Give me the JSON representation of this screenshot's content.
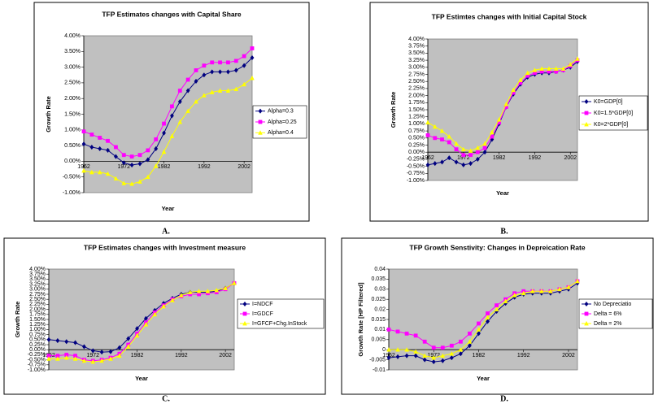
{
  "chart_data": [
    {
      "type": "line",
      "title": "TFP Estimates changes with Capital Share",
      "caption": "A.",
      "xlabel": "Year",
      "ylabel": "Growth Rate",
      "x": [
        1962,
        1964,
        1966,
        1968,
        1970,
        1972,
        1974,
        1976,
        1978,
        1980,
        1982,
        1984,
        1986,
        1988,
        1990,
        1992,
        1994,
        1996,
        1998,
        2000,
        2002,
        2004
      ],
      "xlim": [
        1962,
        2004
      ],
      "xticks": [
        1962,
        1972,
        1982,
        1992,
        2002
      ],
      "ylim": [
        -1,
        4
      ],
      "yticks": [
        {
          "value": -1,
          "label": "-1.00%"
        },
        {
          "value": -0.5,
          "label": "-0.50%"
        },
        {
          "value": 0,
          "label": "0.00%"
        },
        {
          "value": 0.5,
          "label": "0.50%"
        },
        {
          "value": 1,
          "label": "1.00%"
        },
        {
          "value": 1.5,
          "label": "1.50%"
        },
        {
          "value": 2,
          "label": "2.00%"
        },
        {
          "value": 2.5,
          "label": "2.50%"
        },
        {
          "value": 3,
          "label": "3.00%"
        },
        {
          "value": 3.5,
          "label": "3.50%"
        },
        {
          "value": 4,
          "label": "4.00%"
        }
      ],
      "series": [
        {
          "name": "Alpha=0.3",
          "color": "#000080",
          "marker": "diamond",
          "values": [
            0.55,
            0.45,
            0.4,
            0.35,
            0.15,
            -0.05,
            -0.12,
            -0.08,
            0.05,
            0.4,
            0.9,
            1.45,
            1.9,
            2.25,
            2.55,
            2.75,
            2.85,
            2.85,
            2.85,
            2.9,
            3.05,
            3.3
          ]
        },
        {
          "name": "Alpha=0.25",
          "color": "#ff00ff",
          "marker": "square",
          "values": [
            0.95,
            0.85,
            0.75,
            0.65,
            0.45,
            0.2,
            0.15,
            0.2,
            0.35,
            0.7,
            1.2,
            1.75,
            2.25,
            2.6,
            2.9,
            3.05,
            3.15,
            3.15,
            3.15,
            3.2,
            3.35,
            3.6
          ]
        },
        {
          "name": "Alpha=0.4",
          "color": "#ffff00",
          "marker": "triangle",
          "values": [
            -0.3,
            -0.35,
            -0.35,
            -0.4,
            -0.55,
            -0.7,
            -0.72,
            -0.65,
            -0.5,
            -0.15,
            0.3,
            0.8,
            1.25,
            1.6,
            1.9,
            2.1,
            2.2,
            2.25,
            2.25,
            2.3,
            2.45,
            2.65
          ]
        }
      ]
    },
    {
      "type": "line",
      "title": "TFP Estimtes changes with Initial Capital Stock",
      "caption": "B.",
      "xlabel": "Year",
      "ylabel": "Growth Rate",
      "x": [
        1962,
        1964,
        1966,
        1968,
        1970,
        1972,
        1974,
        1976,
        1978,
        1980,
        1982,
        1984,
        1986,
        1988,
        1990,
        1992,
        1994,
        1996,
        1998,
        2000,
        2002,
        2004
      ],
      "xlim": [
        1962,
        2004
      ],
      "xticks": [
        1962,
        1972,
        1982,
        1992,
        2002
      ],
      "ylim": [
        -1,
        4
      ],
      "yticks": [
        {
          "value": -1,
          "label": "-1.00%"
        },
        {
          "value": -0.75,
          "label": "-0.75%"
        },
        {
          "value": -0.5,
          "label": "-0.50%"
        },
        {
          "value": -0.25,
          "label": "-0.25%"
        },
        {
          "value": 0,
          "label": "0.00%"
        },
        {
          "value": 0.25,
          "label": "0.25%"
        },
        {
          "value": 0.5,
          "label": "0.50%"
        },
        {
          "value": 0.75,
          "label": "0.75%"
        },
        {
          "value": 1,
          "label": "1.00%"
        },
        {
          "value": 1.25,
          "label": "1.25%"
        },
        {
          "value": 1.5,
          "label": "1.50%"
        },
        {
          "value": 1.75,
          "label": "1.75%"
        },
        {
          "value": 2,
          "label": "2.00%"
        },
        {
          "value": 2.25,
          "label": "2.25%"
        },
        {
          "value": 2.5,
          "label": "2.50%"
        },
        {
          "value": 2.75,
          "label": "2.75%"
        },
        {
          "value": 3,
          "label": "3.00%"
        },
        {
          "value": 3.25,
          "label": "3.25%"
        },
        {
          "value": 3.5,
          "label": "3.50%"
        },
        {
          "value": 3.75,
          "label": "3.75%"
        },
        {
          "value": 4,
          "label": "4.00%"
        }
      ],
      "series": [
        {
          "name": "K0=GDP[0]",
          "color": "#000080",
          "marker": "diamond",
          "values": [
            -0.45,
            -0.4,
            -0.35,
            -0.2,
            -0.35,
            -0.45,
            -0.4,
            -0.25,
            0.0,
            0.45,
            1.0,
            1.6,
            2.05,
            2.4,
            2.65,
            2.75,
            2.8,
            2.8,
            2.85,
            2.9,
            3.0,
            3.2
          ]
        },
        {
          "name": "K0=1.5*GDP[0]",
          "color": "#ff00ff",
          "marker": "square",
          "values": [
            0.6,
            0.5,
            0.45,
            0.35,
            0.1,
            -0.1,
            -0.1,
            0.0,
            0.15,
            0.55,
            1.05,
            1.6,
            2.1,
            2.45,
            2.7,
            2.8,
            2.85,
            2.85,
            2.85,
            2.9,
            3.05,
            3.25
          ]
        },
        {
          "name": "K0=2*GDP[0]",
          "color": "#ffff00",
          "marker": "triangle",
          "values": [
            1.05,
            0.9,
            0.75,
            0.55,
            0.3,
            0.1,
            0.05,
            0.15,
            0.3,
            0.7,
            1.15,
            1.7,
            2.2,
            2.55,
            2.8,
            2.9,
            2.95,
            2.95,
            2.95,
            2.95,
            3.1,
            3.3
          ]
        }
      ]
    },
    {
      "type": "line",
      "title": "TFP Estimates changes with Investment measure",
      "caption": "C.",
      "xlabel": "Year",
      "ylabel": "Growth Rate",
      "x": [
        1962,
        1964,
        1966,
        1968,
        1970,
        1972,
        1974,
        1976,
        1978,
        1980,
        1982,
        1984,
        1986,
        1988,
        1990,
        1992,
        1994,
        1996,
        1998,
        2000,
        2002,
        2004
      ],
      "xlim": [
        1962,
        2004
      ],
      "xticks": [
        1962,
        1972,
        1982,
        1992,
        2002
      ],
      "ylim": [
        -1,
        4
      ],
      "yticks": [
        {
          "value": -1,
          "label": "-1.00%"
        },
        {
          "value": -0.75,
          "label": "-0.75%"
        },
        {
          "value": -0.5,
          "label": "-0.50%"
        },
        {
          "value": -0.25,
          "label": "-0.25%"
        },
        {
          "value": 0,
          "label": "0.00%"
        },
        {
          "value": 0.25,
          "label": "0.25%"
        },
        {
          "value": 0.5,
          "label": "0.50%"
        },
        {
          "value": 0.75,
          "label": "0.75%"
        },
        {
          "value": 1,
          "label": "1.00%"
        },
        {
          "value": 1.25,
          "label": "1.25%"
        },
        {
          "value": 1.5,
          "label": "1.50%"
        },
        {
          "value": 1.75,
          "label": "1.75%"
        },
        {
          "value": 2,
          "label": "2.00%"
        },
        {
          "value": 2.25,
          "label": "2.25%"
        },
        {
          "value": 2.5,
          "label": "2.50%"
        },
        {
          "value": 2.75,
          "label": "2.75%"
        },
        {
          "value": 3,
          "label": "3.00%"
        },
        {
          "value": 3.25,
          "label": "3.25%"
        },
        {
          "value": 3.5,
          "label": "3.50%"
        },
        {
          "value": 3.75,
          "label": "3.75%"
        },
        {
          "value": 4,
          "label": "4.00%"
        }
      ],
      "series": [
        {
          "name": "I=NDCF",
          "color": "#000080",
          "marker": "diamond",
          "values": [
            0.5,
            0.45,
            0.4,
            0.35,
            0.15,
            -0.05,
            -0.12,
            -0.1,
            0.1,
            0.55,
            1.05,
            1.55,
            1.95,
            2.3,
            2.55,
            2.75,
            2.85,
            2.85,
            2.85,
            2.9,
            3.05,
            3.3
          ]
        },
        {
          "name": "I=GDCF",
          "color": "#ff00ff",
          "marker": "square",
          "values": [
            -0.3,
            -0.3,
            -0.25,
            -0.3,
            -0.5,
            -0.55,
            -0.5,
            -0.4,
            -0.2,
            0.25,
            0.8,
            1.35,
            1.85,
            2.2,
            2.5,
            2.65,
            2.75,
            2.75,
            2.8,
            2.85,
            3.0,
            3.3
          ]
        },
        {
          "name": "I=GFCF+Chg.InStock",
          "color": "#ffff00",
          "marker": "triangle",
          "values": [
            -0.45,
            -0.45,
            -0.4,
            -0.45,
            -0.55,
            -0.6,
            -0.55,
            -0.45,
            -0.3,
            0.15,
            0.7,
            1.25,
            1.75,
            2.15,
            2.45,
            2.7,
            2.85,
            2.9,
            2.9,
            2.95,
            3.05,
            3.3
          ]
        }
      ]
    },
    {
      "type": "line",
      "title": "TFP Growth Senstivity: Changes in Depreication Rate",
      "caption": "D.",
      "xlabel": "Year",
      "ylabel": "Growth Rate [HP Filtered]",
      "x": [
        1962,
        1964,
        1966,
        1968,
        1970,
        1972,
        1974,
        1976,
        1978,
        1980,
        1982,
        1984,
        1986,
        1988,
        1990,
        1992,
        1994,
        1996,
        1998,
        2000,
        2002,
        2004
      ],
      "xlim": [
        1962,
        2004
      ],
      "xticks": [
        1962,
        1972,
        1982,
        1992,
        2002
      ],
      "ylim": [
        -0.01,
        0.04
      ],
      "yticks": [
        -0.01,
        -0.005,
        0,
        0.005,
        0.01,
        0.015,
        0.02,
        0.025,
        0.03,
        0.035,
        0.04
      ],
      "series": [
        {
          "name": "No Depreciatio",
          "color": "#000080",
          "marker": "diamond",
          "values": [
            -0.004,
            -0.0035,
            -0.003,
            -0.003,
            -0.005,
            -0.006,
            -0.0055,
            -0.004,
            -0.002,
            0.002,
            0.008,
            0.014,
            0.019,
            0.023,
            0.026,
            0.0275,
            0.028,
            0.028,
            0.028,
            0.029,
            0.03,
            0.033
          ]
        },
        {
          "name": "Delta = 6%",
          "color": "#ff00ff",
          "marker": "square",
          "values": [
            0.01,
            0.009,
            0.008,
            0.007,
            0.004,
            0.001,
            0.001,
            0.002,
            0.004,
            0.008,
            0.013,
            0.018,
            0.022,
            0.025,
            0.028,
            0.029,
            0.029,
            0.029,
            0.029,
            0.03,
            0.031,
            0.034
          ]
        },
        {
          "name": "Delta = 2%",
          "color": "#ffff00",
          "marker": "triangle",
          "values": [
            0.0,
            0.0,
            0.0,
            -0.001,
            -0.003,
            -0.004,
            -0.003,
            -0.002,
            0.0,
            0.004,
            0.01,
            0.016,
            0.02,
            0.024,
            0.027,
            0.028,
            0.029,
            0.029,
            0.029,
            0.03,
            0.031,
            0.034
          ]
        }
      ]
    }
  ]
}
